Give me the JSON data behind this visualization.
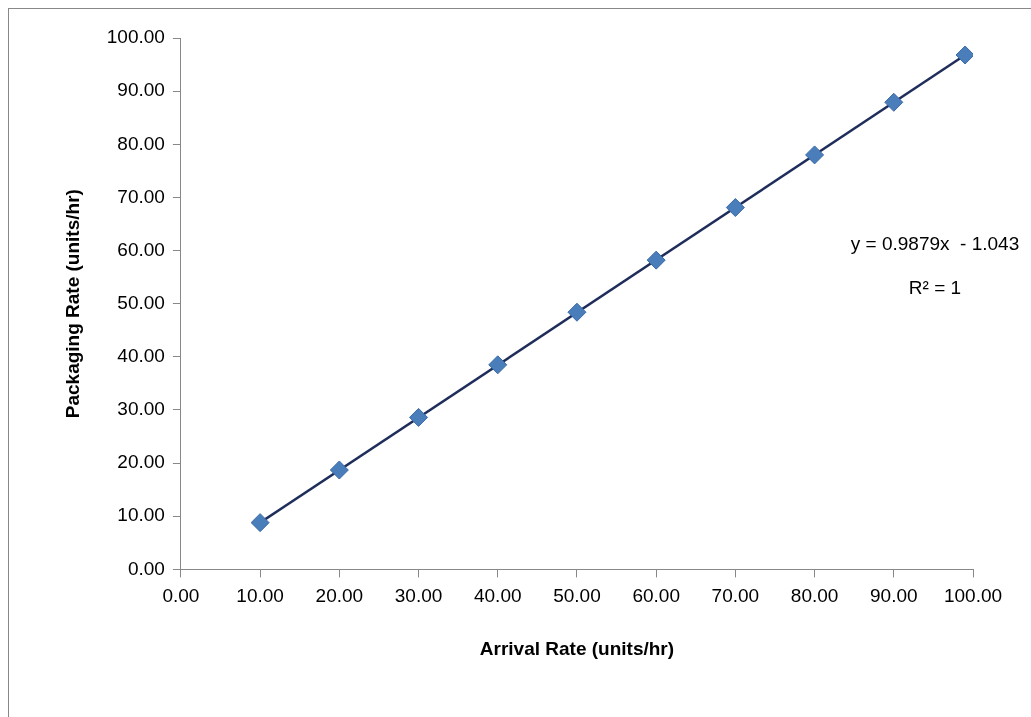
{
  "chart_data": {
    "type": "scatter",
    "xlabel": "Arrival Rate (units/hr)",
    "ylabel": "Packaging Rate (units/hr)",
    "annotations": [
      "y = 0.9879x  - 1.043",
      "R² = 1"
    ],
    "xlim": [
      0,
      100
    ],
    "ylim": [
      0,
      100
    ],
    "xticks": [
      {
        "value": 0,
        "label": "0.00"
      },
      {
        "value": 10,
        "label": "10.00"
      },
      {
        "value": 20,
        "label": "20.00"
      },
      {
        "value": 30,
        "label": "30.00"
      },
      {
        "value": 40,
        "label": "40.00"
      },
      {
        "value": 50,
        "label": "50.00"
      },
      {
        "value": 60,
        "label": "60.00"
      },
      {
        "value": 70,
        "label": "70.00"
      },
      {
        "value": 80,
        "label": "80.00"
      },
      {
        "value": 90,
        "label": "90.00"
      },
      {
        "value": 100,
        "label": "100.00"
      }
    ],
    "yticks": [
      {
        "value": 0,
        "label": "0.00"
      },
      {
        "value": 10,
        "label": "10.00"
      },
      {
        "value": 20,
        "label": "20.00"
      },
      {
        "value": 30,
        "label": "30.00"
      },
      {
        "value": 40,
        "label": "40.00"
      },
      {
        "value": 50,
        "label": "50.00"
      },
      {
        "value": 60,
        "label": "60.00"
      },
      {
        "value": 70,
        "label": "70.00"
      },
      {
        "value": 80,
        "label": "80.00"
      },
      {
        "value": 90,
        "label": "90.00"
      },
      {
        "value": 100,
        "label": "100.00"
      }
    ],
    "grid": false,
    "legend": false,
    "series": [
      {
        "type": "scatter",
        "color": "#4a7ebb",
        "marker": "diamond",
        "x": [
          10,
          20,
          30,
          40,
          50,
          60,
          70,
          80,
          90,
          99
        ],
        "values": [
          8.8,
          18.7,
          28.6,
          38.5,
          48.4,
          58.2,
          68.1,
          78.0,
          87.9,
          96.8
        ]
      },
      {
        "type": "line",
        "color": "#1f2d5a",
        "marker": "none",
        "line_style": "solid",
        "x": [
          10,
          99
        ],
        "values": [
          8.8,
          96.8
        ]
      }
    ]
  }
}
